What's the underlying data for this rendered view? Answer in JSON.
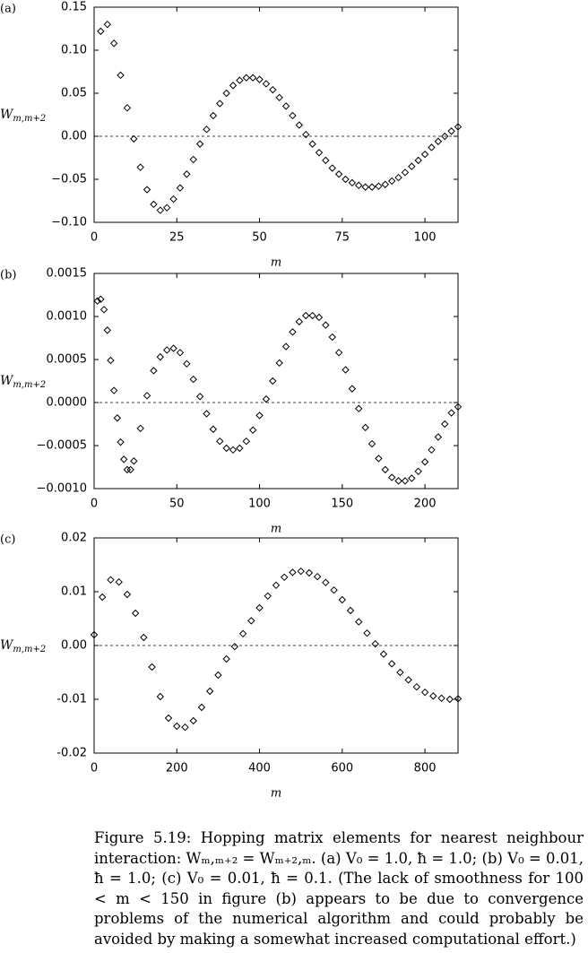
{
  "chart_data": [
    {
      "type": "scatter",
      "panel": "(a)",
      "x_label": "m",
      "y_label": [
        "W",
        "m,m+2"
      ],
      "color": "#000000",
      "marker": "diamond",
      "hline": 0,
      "x": [
        2,
        4,
        6,
        8,
        10,
        12,
        14,
        16,
        18,
        20,
        22,
        24,
        26,
        28,
        30,
        32,
        34,
        36,
        38,
        40,
        42,
        44,
        46,
        48,
        50,
        52,
        54,
        56,
        58,
        60,
        62,
        64,
        66,
        68,
        70,
        72,
        74,
        76,
        78,
        80,
        82,
        84,
        86,
        88,
        90,
        92,
        94,
        96,
        98,
        100,
        102,
        104,
        106,
        108,
        110
      ],
      "y": [
        0.122,
        0.13,
        0.108,
        0.071,
        0.033,
        -0.003,
        -0.036,
        -0.062,
        -0.079,
        -0.086,
        -0.083,
        -0.073,
        -0.06,
        -0.044,
        -0.027,
        -0.009,
        0.008,
        0.024,
        0.038,
        0.05,
        0.059,
        0.065,
        0.068,
        0.068,
        0.066,
        0.061,
        0.054,
        0.045,
        0.035,
        0.024,
        0.013,
        0.002,
        -0.009,
        -0.019,
        -0.028,
        -0.037,
        -0.044,
        -0.05,
        -0.054,
        -0.057,
        -0.059,
        -0.059,
        -0.058,
        -0.056,
        -0.052,
        -0.048,
        -0.042,
        -0.035,
        -0.028,
        -0.021,
        -0.013,
        -0.006,
        0.0,
        0.006,
        0.011
      ],
      "xlim": [
        0,
        110
      ],
      "xticks": [
        0,
        25,
        50,
        75,
        100
      ],
      "ylim": [
        -0.1,
        0.15
      ],
      "yticks": [
        {
          "value": -0.1,
          "label": "−0.10"
        },
        {
          "value": -0.05,
          "label": "−0.05"
        },
        {
          "value": 0,
          "label": "0.00"
        },
        0.05,
        {
          "value": 0.1,
          "label": "0.10"
        },
        0.15
      ]
    },
    {
      "type": "scatter",
      "panel": "(b)",
      "x_label": "m",
      "y_label": [
        "W",
        "m,m+2"
      ],
      "color": "#000000",
      "marker": "diamond",
      "hline": 0,
      "x": [
        2,
        4,
        6,
        8,
        10,
        12,
        14,
        16,
        18,
        20,
        22,
        24,
        28,
        32,
        36,
        40,
        44,
        48,
        52,
        56,
        60,
        64,
        68,
        72,
        76,
        80,
        84,
        88,
        92,
        96,
        100,
        104,
        108,
        112,
        116,
        120,
        124,
        128,
        132,
        136,
        140,
        144,
        148,
        152,
        156,
        160,
        164,
        168,
        172,
        176,
        180,
        184,
        188,
        192,
        196,
        200,
        204,
        208,
        212,
        216,
        220
      ],
      "y": [
        0.00118,
        0.0012,
        0.00108,
        0.00084,
        0.00049,
        0.00014,
        -0.00018,
        -0.00046,
        -0.00066,
        -0.00078,
        -0.00078,
        -0.00068,
        -0.0003,
        8e-05,
        0.00037,
        0.00053,
        0.00061,
        0.00063,
        0.00058,
        0.00045,
        0.00027,
        7e-05,
        -0.00013,
        -0.00031,
        -0.00045,
        -0.00053,
        -0.00055,
        -0.00053,
        -0.00045,
        -0.00032,
        -0.00015,
        4e-05,
        0.00025,
        0.00046,
        0.00065,
        0.00082,
        0.00094,
        0.00101,
        0.00101,
        0.00099,
        0.0009,
        0.00076,
        0.00058,
        0.00038,
        0.00016,
        -7e-05,
        -0.00029,
        -0.00048,
        -0.00065,
        -0.00078,
        -0.00087,
        -0.00091,
        -0.00091,
        -0.00088,
        -0.0008,
        -0.00069,
        -0.00055,
        -0.0004,
        -0.00025,
        -0.00012,
        -5e-05
      ],
      "xlim": [
        0,
        220
      ],
      "xticks": [
        0,
        50,
        100,
        150,
        200
      ],
      "ylim": [
        -0.001,
        0.0015
      ],
      "yticks": [
        {
          "value": -0.001,
          "label": "−0.0010"
        },
        {
          "value": -0.0005,
          "label": "−0.0005"
        },
        {
          "value": 0,
          "label": "0.0000"
        },
        0.0005,
        {
          "value": 0.001,
          "label": "0.0010"
        },
        0.0015
      ]
    },
    {
      "type": "scatter",
      "panel": "(c)",
      "x_label": "m",
      "y_label": [
        "W",
        "m,m+2"
      ],
      "color": "#000000",
      "marker": "diamond",
      "hline": 0,
      "x": [
        0,
        20,
        40,
        60,
        80,
        100,
        120,
        140,
        160,
        180,
        200,
        220,
        240,
        260,
        280,
        300,
        320,
        340,
        360,
        380,
        400,
        420,
        440,
        460,
        480,
        500,
        520,
        540,
        560,
        580,
        600,
        620,
        640,
        660,
        680,
        700,
        720,
        740,
        760,
        780,
        800,
        820,
        840,
        860,
        880
      ],
      "y": [
        0.002,
        0.009,
        0.0122,
        0.0118,
        0.0095,
        0.006,
        0.0015,
        -0.004,
        -0.0095,
        -0.0135,
        -0.015,
        -0.0152,
        -0.014,
        -0.0115,
        -0.0085,
        -0.0055,
        -0.0025,
        -0.0002,
        0.0022,
        0.0046,
        0.007,
        0.0092,
        0.0112,
        0.0127,
        0.0136,
        0.0138,
        0.0135,
        0.0128,
        0.0117,
        0.0103,
        0.0085,
        0.0065,
        0.0044,
        0.0023,
        0.0003,
        -0.0016,
        -0.0034,
        -0.005,
        -0.0064,
        -0.0077,
        -0.0087,
        -0.0094,
        -0.0098,
        -0.01,
        -0.0099
      ],
      "xlim": [
        0,
        880
      ],
      "xticks": [
        0,
        200,
        400,
        600,
        800
      ],
      "ylim": [
        -0.02,
        0.02
      ],
      "yticks": [
        -0.02,
        -0.01,
        {
          "value": 0,
          "label": "0.00"
        },
        0.01,
        0.02
      ]
    }
  ],
  "caption": "Figure 5.19: Hopping matrix elements for nearest neighbour interaction: Wₘ,ₘ₊₂ = Wₘ₊₂,ₘ. (a) V₀ = 1.0, ħ = 1.0; (b) V₀ = 0.01, ħ = 1.0; (c) V₀ = 0.01, ħ = 0.1. (The lack of smoothness for 100 < m < 150 in figure (b) appears to be due to convergence problems of the numerical algorithm and could probably be avoided by making a somewhat increased computational effort.)"
}
